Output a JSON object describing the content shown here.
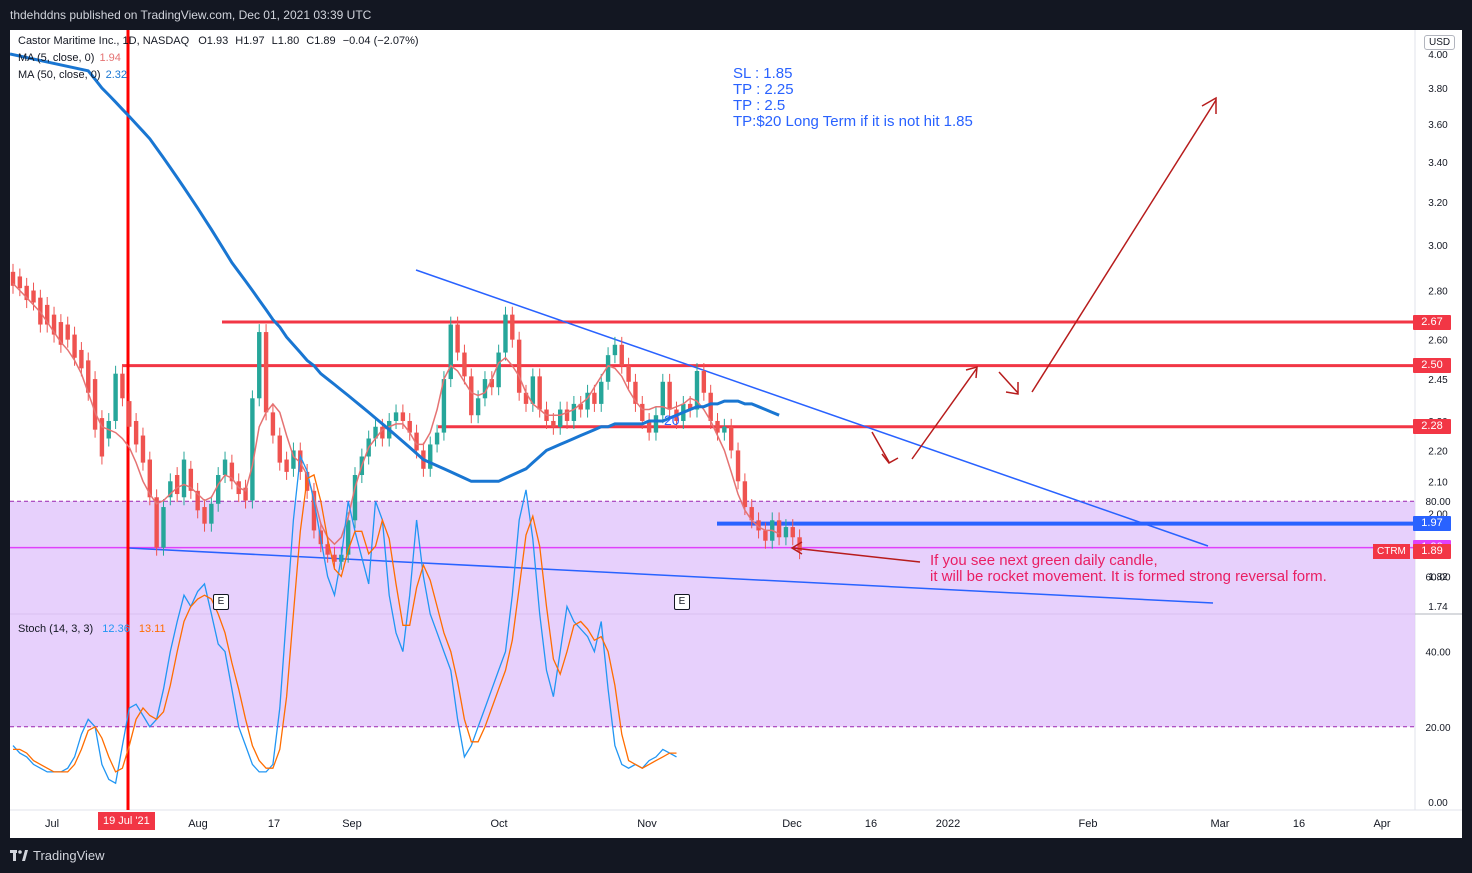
{
  "header": {
    "publisher_line": "thdehddns published on TradingView.com, Dec 01, 2021 03:39 UTC"
  },
  "footer": {
    "brand": "TradingView"
  },
  "legend": {
    "symbol": "Castor Maritime Inc., 1D, NASDAQ",
    "open": "O1.93",
    "high": "H1.97",
    "low": "L1.80",
    "close": "C1.89",
    "change": "−0.04 (−2.07%)",
    "ma5_label": "MA (5, close, 0)",
    "ma5_value": "1.94",
    "ma50_label": "MA (50, close, 0)",
    "ma50_value": "2.32",
    "stoch_label": "Stoch (14, 3, 3)",
    "stoch_k": "12.36",
    "stoch_d": "13.11"
  },
  "currency": "USD",
  "ticker_tag": "CTRM",
  "earnings_marks": [
    "E",
    "E"
  ],
  "annotations": {
    "targets": [
      "SL : 1.85",
      "TP : 2.25",
      "TP : 2.5",
      "TP:$20 Long Term if it is not hit 1.85"
    ],
    "marker_20": "20",
    "note_line1": "If you see next green daily candle,",
    "note_line2": "it will be rocket movement. It is formed strong reversal form."
  },
  "price_tags": [
    {
      "label": "2.67",
      "price": 2.67,
      "color": "#f23645"
    },
    {
      "label": "2.50",
      "price": 2.5,
      "color": "#f23645"
    },
    {
      "label": "2.28",
      "price": 2.28,
      "color": "#f23645"
    },
    {
      "label": "1.97",
      "price": 1.97,
      "color": "#2962ff"
    },
    {
      "label": "1.90",
      "price": 1.9,
      "color": "#e040fb"
    },
    {
      "label": "1.89",
      "price": 1.89,
      "color": "#f23645"
    }
  ],
  "highlight_date": "19 Jul '21",
  "colors": {
    "up": "#26a69a",
    "down": "#ef5350",
    "ma5": "#e57373",
    "ma50": "#1976d2",
    "level": "#f23645",
    "trend": "#2962ff",
    "arrow": "#b71c1c",
    "stoch_k": "#2196f3",
    "stoch_d": "#ff6d00",
    "stoch_band": "#e1c4fb"
  },
  "chart_data": {
    "type": "candlestick",
    "x_axis_labels": [
      "Jul",
      "Aug",
      "17",
      "Sep",
      "Oct",
      "Nov",
      "Dec",
      "16",
      "2022",
      "Feb",
      "Mar",
      "16",
      "Apr"
    ],
    "y_axis_labels": [
      "4.00",
      "3.80",
      "3.60",
      "3.40",
      "3.20",
      "3.00",
      "2.80",
      "2.60",
      "2.45",
      "2.30",
      "2.20",
      "2.10",
      "2.00",
      "1.90",
      "1.82",
      "1.74"
    ],
    "log_scale": true,
    "ylim": [
      1.72,
      4.05
    ],
    "candles": [
      [
        2.88,
        2.82
      ],
      [
        2.86,
        2.81
      ],
      [
        2.82,
        2.76
      ],
      [
        2.8,
        2.75
      ],
      [
        2.77,
        2.66
      ],
      [
        2.74,
        2.66
      ],
      [
        2.7,
        2.62
      ],
      [
        2.67,
        2.58
      ],
      [
        2.66,
        2.6
      ],
      [
        2.62,
        2.53
      ],
      [
        2.56,
        2.49
      ],
      [
        2.52,
        2.4
      ],
      [
        2.45,
        2.27
      ],
      [
        2.31,
        2.18
      ],
      [
        2.24,
        2.3
      ],
      [
        2.3,
        2.47
      ],
      [
        2.47,
        2.38
      ],
      [
        2.37,
        2.28
      ],
      [
        2.3,
        2.22
      ],
      [
        2.25,
        2.16
      ],
      [
        2.17,
        2.05
      ],
      [
        2.05,
        1.9
      ],
      [
        1.9,
        2.02
      ],
      [
        2.05,
        2.1
      ],
      [
        2.12,
        2.06
      ],
      [
        2.05,
        2.17
      ],
      [
        2.14,
        2.07
      ],
      [
        2.07,
        2.01
      ],
      [
        2.02,
        1.97
      ],
      [
        1.97,
        2.03
      ],
      [
        2.03,
        2.12
      ],
      [
        2.12,
        2.17
      ],
      [
        2.16,
        2.1
      ],
      [
        2.1,
        2.06
      ],
      [
        2.08,
        2.04
      ],
      [
        2.04,
        2.38
      ],
      [
        2.38,
        2.63
      ],
      [
        2.63,
        2.33
      ],
      [
        2.33,
        2.25
      ],
      [
        2.25,
        2.16
      ],
      [
        2.17,
        2.13
      ],
      [
        2.14,
        2.2
      ],
      [
        2.2,
        2.13
      ],
      [
        2.13,
        2.07
      ],
      [
        2.07,
        1.95
      ],
      [
        1.95,
        1.91
      ],
      [
        1.91,
        1.88
      ],
      [
        1.88,
        1.86
      ],
      [
        1.86,
        1.88
      ],
      [
        1.88,
        1.98
      ],
      [
        1.98,
        2.12
      ],
      [
        2.12,
        2.18
      ],
      [
        2.18,
        2.24
      ],
      [
        2.24,
        2.28
      ],
      [
        2.28,
        2.24
      ],
      [
        2.24,
        2.3
      ],
      [
        2.3,
        2.33
      ],
      [
        2.33,
        2.3
      ],
      [
        2.3,
        2.26
      ],
      [
        2.26,
        2.2
      ],
      [
        2.2,
        2.14
      ],
      [
        2.14,
        2.22
      ],
      [
        2.22,
        2.26
      ],
      [
        2.26,
        2.45
      ],
      [
        2.45,
        2.66
      ],
      [
        2.66,
        2.55
      ],
      [
        2.55,
        2.46
      ],
      [
        2.46,
        2.32
      ],
      [
        2.32,
        2.38
      ],
      [
        2.38,
        2.45
      ],
      [
        2.45,
        2.42
      ],
      [
        2.42,
        2.55
      ],
      [
        2.55,
        2.7
      ],
      [
        2.7,
        2.6
      ],
      [
        2.6,
        2.4
      ],
      [
        2.4,
        2.36
      ],
      [
        2.36,
        2.46
      ],
      [
        2.46,
        2.34
      ],
      [
        2.34,
        2.3
      ],
      [
        2.3,
        2.28
      ],
      [
        2.28,
        2.34
      ],
      [
        2.34,
        2.3
      ],
      [
        2.3,
        2.36
      ],
      [
        2.36,
        2.34
      ],
      [
        2.34,
        2.4
      ],
      [
        2.4,
        2.36
      ],
      [
        2.36,
        2.44
      ],
      [
        2.44,
        2.54
      ],
      [
        2.54,
        2.58
      ],
      [
        2.58,
        2.5
      ],
      [
        2.5,
        2.44
      ],
      [
        2.44,
        2.36
      ],
      [
        2.36,
        2.3
      ],
      [
        2.3,
        2.26
      ],
      [
        2.26,
        2.32
      ],
      [
        2.32,
        2.44
      ],
      [
        2.44,
        2.34
      ],
      [
        2.34,
        2.3
      ],
      [
        2.3,
        2.36
      ],
      [
        2.36,
        2.34
      ],
      [
        2.34,
        2.48
      ],
      [
        2.48,
        2.4
      ],
      [
        2.4,
        2.3
      ],
      [
        2.3,
        2.26
      ],
      [
        2.26,
        2.28
      ],
      [
        2.28,
        2.2
      ],
      [
        2.2,
        2.1
      ],
      [
        2.1,
        2.02
      ],
      [
        2.02,
        1.98
      ],
      [
        1.98,
        1.95
      ],
      [
        1.95,
        1.92
      ],
      [
        1.92,
        1.98
      ],
      [
        1.98,
        1.93
      ],
      [
        1.93,
        1.96
      ],
      [
        1.96,
        1.93
      ],
      [
        1.93,
        1.89
      ]
    ],
    "ma5": [
      2.83,
      2.8,
      2.77,
      2.74,
      2.71,
      2.67,
      2.63,
      2.59,
      2.56,
      2.52,
      2.47,
      2.4,
      2.33,
      2.28,
      2.27,
      2.26,
      2.24,
      2.21,
      2.16,
      2.1,
      2.06,
      2.03,
      2.04,
      2.06,
      2.08,
      2.09,
      2.08,
      2.06,
      2.04,
      2.05,
      2.09,
      2.12,
      2.11,
      2.08,
      2.07,
      2.15,
      2.28,
      2.33,
      2.36,
      2.33,
      2.25,
      2.18,
      2.16,
      2.12,
      2.05,
      1.97,
      1.93,
      1.91,
      1.93,
      1.99,
      2.08,
      2.15,
      2.21,
      2.24,
      2.27,
      2.28,
      2.29,
      2.29,
      2.26,
      2.22,
      2.22,
      2.26,
      2.34,
      2.45,
      2.5,
      2.48,
      2.44,
      2.4,
      2.39,
      2.4,
      2.45,
      2.51,
      2.53,
      2.5,
      2.46,
      2.4,
      2.36,
      2.34,
      2.32,
      2.32,
      2.32,
      2.33,
      2.34,
      2.36,
      2.38,
      2.42,
      2.46,
      2.5,
      2.49,
      2.46,
      2.41,
      2.37,
      2.34,
      2.34,
      2.35,
      2.35,
      2.34,
      2.35,
      2.36,
      2.38,
      2.37,
      2.34,
      2.3,
      2.25,
      2.2,
      2.13,
      2.06,
      2.01,
      1.98,
      1.96,
      1.95,
      1.95,
      1.94
    ],
    "ma50": [
      3.9,
      3.85,
      3.8,
      3.76,
      3.72,
      3.68,
      3.64,
      3.6,
      3.56,
      3.52,
      3.47,
      3.42,
      3.37,
      3.32,
      3.27,
      3.22,
      3.17,
      3.12,
      3.07,
      3.02,
      2.97,
      2.92,
      2.88,
      2.84,
      2.8,
      2.76,
      2.72,
      2.68,
      2.65,
      2.61,
      2.58,
      2.55,
      2.52,
      2.5,
      2.47,
      2.45,
      2.43,
      2.41,
      2.39,
      2.37,
      2.35,
      2.33,
      2.31,
      2.29,
      2.27,
      2.25,
      2.23,
      2.21,
      2.19,
      2.17,
      2.16,
      2.15,
      2.14,
      2.13,
      2.12,
      2.11,
      2.1,
      2.1,
      2.1,
      2.1,
      2.1,
      2.11,
      2.12,
      2.13,
      2.14,
      2.16,
      2.18,
      2.2,
      2.21,
      2.22,
      2.23,
      2.24,
      2.25,
      2.26,
      2.27,
      2.28,
      2.28,
      2.29,
      2.29,
      2.29,
      2.29,
      2.29,
      2.3,
      2.3,
      2.3,
      2.31,
      2.32,
      2.33,
      2.34,
      2.35,
      2.35,
      2.36,
      2.36,
      2.37,
      2.37,
      2.37,
      2.36,
      2.36,
      2.35,
      2.34,
      2.33,
      2.32
    ],
    "stoch_k": [
      15,
      13,
      12,
      10,
      9,
      8,
      8,
      8,
      9,
      12,
      18,
      22,
      20,
      10,
      6,
      5,
      15,
      25,
      26,
      23,
      20,
      22,
      30,
      40,
      48,
      55,
      52,
      56,
      58,
      50,
      42,
      40,
      30,
      20,
      15,
      10,
      8,
      8,
      10,
      25,
      50,
      75,
      92,
      88,
      80,
      70,
      60,
      55,
      65,
      80,
      72,
      65,
      58,
      80,
      75,
      55,
      45,
      40,
      55,
      75,
      60,
      50,
      45,
      40,
      35,
      22,
      12,
      15,
      20,
      25,
      30,
      35,
      40,
      55,
      75,
      83,
      70,
      50,
      35,
      28,
      40,
      52,
      48,
      46,
      44,
      40,
      48,
      30,
      15,
      10,
      9,
      10,
      9,
      11,
      12,
      14,
      13,
      12
    ],
    "stoch_d": [
      14,
      14,
      13,
      11,
      10,
      9,
      8,
      8,
      8,
      10,
      14,
      19,
      20,
      17,
      12,
      8,
      9,
      15,
      22,
      25,
      23,
      22,
      24,
      31,
      40,
      48,
      52,
      54,
      55,
      54,
      50,
      45,
      37,
      30,
      22,
      15,
      11,
      9,
      9,
      14,
      28,
      50,
      72,
      86,
      87,
      80,
      70,
      62,
      60,
      67,
      72,
      72,
      66,
      68,
      75,
      70,
      58,
      47,
      47,
      57,
      63,
      59,
      52,
      45,
      40,
      32,
      22,
      16,
      16,
      20,
      25,
      30,
      35,
      43,
      57,
      71,
      76,
      68,
      52,
      38,
      34,
      40,
      47,
      48,
      46,
      43,
      44,
      40,
      31,
      18,
      11,
      10,
      9,
      10,
      11,
      12,
      13,
      13
    ]
  }
}
